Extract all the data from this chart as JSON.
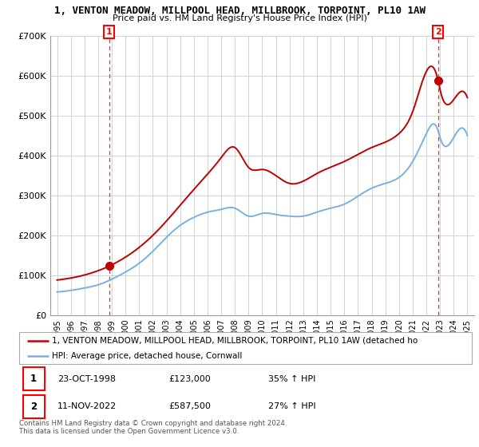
{
  "title": "1, VENTON MEADOW, MILLPOOL HEAD, MILLBROOK, TORPOINT, PL10 1AW",
  "subtitle": "Price paid vs. HM Land Registry's House Price Index (HPI)",
  "legend_line1": "1, VENTON MEADOW, MILLPOOL HEAD, MILLBROOK, TORPOINT, PL10 1AW (detached ho",
  "legend_line2": "HPI: Average price, detached house, Cornwall",
  "footer1": "Contains HM Land Registry data © Crown copyright and database right 2024.",
  "footer2": "This data is licensed under the Open Government Licence v3.0.",
  "table_rows": [
    {
      "num": "1",
      "date": "23-OCT-1998",
      "price": "£123,000",
      "hpi": "35% ↑ HPI"
    },
    {
      "num": "2",
      "date": "11-NOV-2022",
      "price": "£587,500",
      "hpi": "27% ↑ HPI"
    }
  ],
  "marker1_x": 1998.81,
  "marker1_y": 123000,
  "marker2_x": 2022.86,
  "marker2_y": 587500,
  "vline1_x": 1998.81,
  "vline2_x": 2022.86,
  "ylim": [
    0,
    700000
  ],
  "xlim_start": 1994.5,
  "xlim_end": 2025.5,
  "yticks": [
    0,
    100000,
    200000,
    300000,
    400000,
    500000,
    600000,
    700000
  ],
  "ytick_labels": [
    "£0",
    "£100K",
    "£200K",
    "£300K",
    "£400K",
    "£500K",
    "£600K",
    "£700K"
  ],
  "hpi_color": "#7ab0e0",
  "price_color": "#c00000",
  "vline_color": "#ff2222",
  "marker_color": "#c00000",
  "grid_color": "#cccccc",
  "background_color": "#ffffff",
  "hpi_data_x": [
    1995,
    1996,
    1997,
    1998,
    1999,
    2000,
    2001,
    2002,
    2003,
    2004,
    2005,
    2006,
    2007,
    2008,
    2009,
    2010,
    2011,
    2012,
    2013,
    2014,
    2015,
    2016,
    2017,
    2018,
    2019,
    2020,
    2021,
    2022,
    2022.86,
    2023,
    2024,
    2025
  ],
  "hpi_data_y": [
    58000,
    62000,
    68000,
    76000,
    90000,
    108000,
    130000,
    160000,
    195000,
    225000,
    245000,
    258000,
    265000,
    268000,
    248000,
    255000,
    252000,
    248000,
    248000,
    258000,
    268000,
    278000,
    298000,
    318000,
    330000,
    345000,
    385000,
    455000,
    462000,
    445000,
    445000,
    450000
  ],
  "prop_data_x": [
    1995,
    1998.81,
    2002,
    2005,
    2007,
    2008,
    2009,
    2010,
    2012,
    2014,
    2016,
    2018,
    2020,
    2021,
    2022.86,
    2023,
    2024,
    2025
  ],
  "prop_data_y": [
    88000,
    123000,
    200000,
    315000,
    395000,
    420000,
    370000,
    365000,
    330000,
    355000,
    385000,
    420000,
    455000,
    510000,
    587500,
    565000,
    540000,
    545000
  ]
}
